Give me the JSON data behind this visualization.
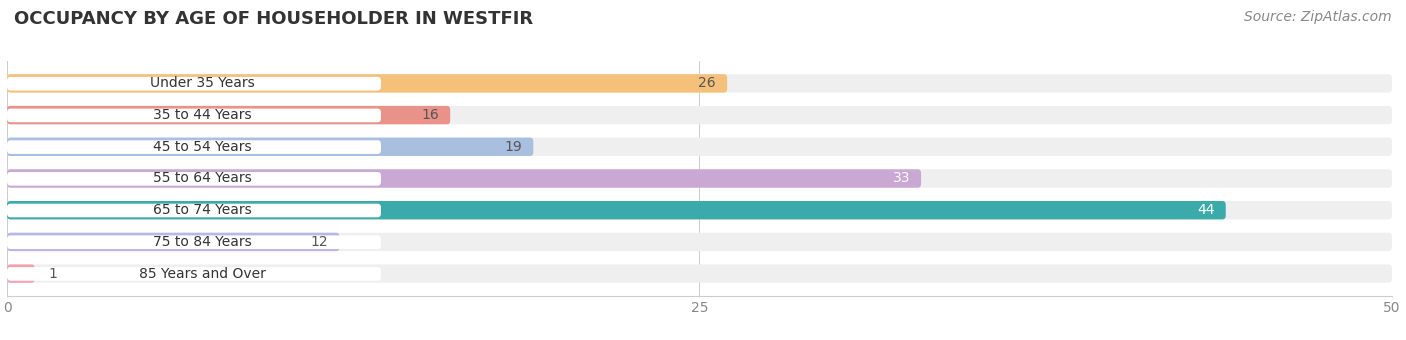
{
  "title": "OCCUPANCY BY AGE OF HOUSEHOLDER IN WESTFIR",
  "source": "Source: ZipAtlas.com",
  "categories": [
    "Under 35 Years",
    "35 to 44 Years",
    "45 to 54 Years",
    "55 to 64 Years",
    "65 to 74 Years",
    "75 to 84 Years",
    "85 Years and Over"
  ],
  "values": [
    26,
    16,
    19,
    33,
    44,
    12,
    1
  ],
  "bar_colors": [
    "#f5c07a",
    "#e8928a",
    "#a8bfe0",
    "#c9a8d4",
    "#3aabaa",
    "#b8b8e8",
    "#f5a0b0"
  ],
  "bar_bg_color": "#efefef",
  "xlim_max": 50,
  "xticks": [
    0,
    25,
    50
  ],
  "title_fontsize": 13,
  "source_fontsize": 10,
  "bar_label_fontsize": 10,
  "category_fontsize": 10,
  "background_color": "#ffffff",
  "value_inside_threshold": 8,
  "inside_label_colors": [
    "#555555",
    "#555555",
    "#555555",
    "#ffffff",
    "#ffffff",
    "#555555",
    "#555555"
  ]
}
